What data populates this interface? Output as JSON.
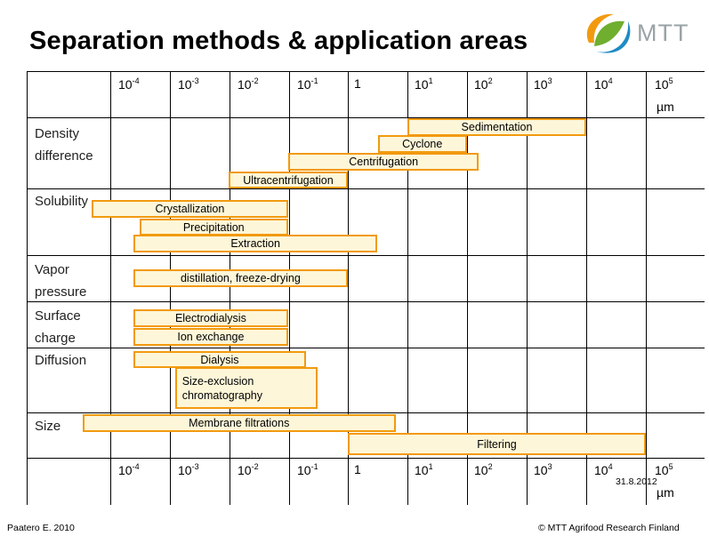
{
  "title": "Separation methods & application areas",
  "logo": {
    "text": "MTT",
    "colors": {
      "orange": "#f29a0f",
      "green": "#6fae2e",
      "blue": "#1e8bc3"
    }
  },
  "axis": {
    "ticks": [
      {
        "base": "10",
        "exp": "-4"
      },
      {
        "base": "10",
        "exp": "-3"
      },
      {
        "base": "10",
        "exp": "-2"
      },
      {
        "base": "10",
        "exp": "-1"
      },
      {
        "base": "1",
        "exp": ""
      },
      {
        "base": "10",
        "exp": "1"
      },
      {
        "base": "10",
        "exp": "2"
      },
      {
        "base": "10",
        "exp": "3"
      },
      {
        "base": "10",
        "exp": "4"
      },
      {
        "base": "10",
        "exp": "5"
      }
    ],
    "unit": "µm"
  },
  "categories": [
    {
      "label": [
        "Density",
        "difference"
      ]
    },
    {
      "label": [
        "Solubility"
      ]
    },
    {
      "label": [
        "Vapor",
        "pressure"
      ]
    },
    {
      "label": [
        "Surface",
        "charge"
      ]
    },
    {
      "label": [
        "Diffusion"
      ]
    },
    {
      "label": [
        "Size"
      ]
    }
  ],
  "methods": [
    {
      "name": "Sedimentation",
      "from": 1,
      "to": 4
    },
    {
      "name": "Cyclone",
      "from": 0.5,
      "to": 2
    },
    {
      "name": "Centrifugation",
      "from": -1,
      "to": 2.2
    },
    {
      "name": "Ultracentrifugation",
      "from": -2,
      "to": 0
    },
    {
      "name": "Crystallization",
      "from": -4.3,
      "to": -1
    },
    {
      "name": "Precipitation",
      "from": -3.5,
      "to": -1
    },
    {
      "name": "Extraction",
      "from": -3.6,
      "to": 0.5
    },
    {
      "name": "distillation, freeze-drying",
      "from": -3.6,
      "to": 0
    },
    {
      "name": "Electrodialysis",
      "from": -3.6,
      "to": -1
    },
    {
      "name": "Ion exchange",
      "from": -3.6,
      "to": -1
    },
    {
      "name": "Dialysis",
      "from": -3.6,
      "to": -0.7
    },
    {
      "name": "Size-exclusion chromatography",
      "from": -2.9,
      "to": -0.5
    },
    {
      "name": "Membrane filtrations",
      "from": -4.45,
      "to": 0.8
    },
    {
      "name": "Filtering",
      "from": 0,
      "to": 5
    }
  ],
  "footer": {
    "author": "Paatero E. 2010",
    "copyright": "© MTT Agrifood Research Finland",
    "date": "31.8.2012"
  }
}
